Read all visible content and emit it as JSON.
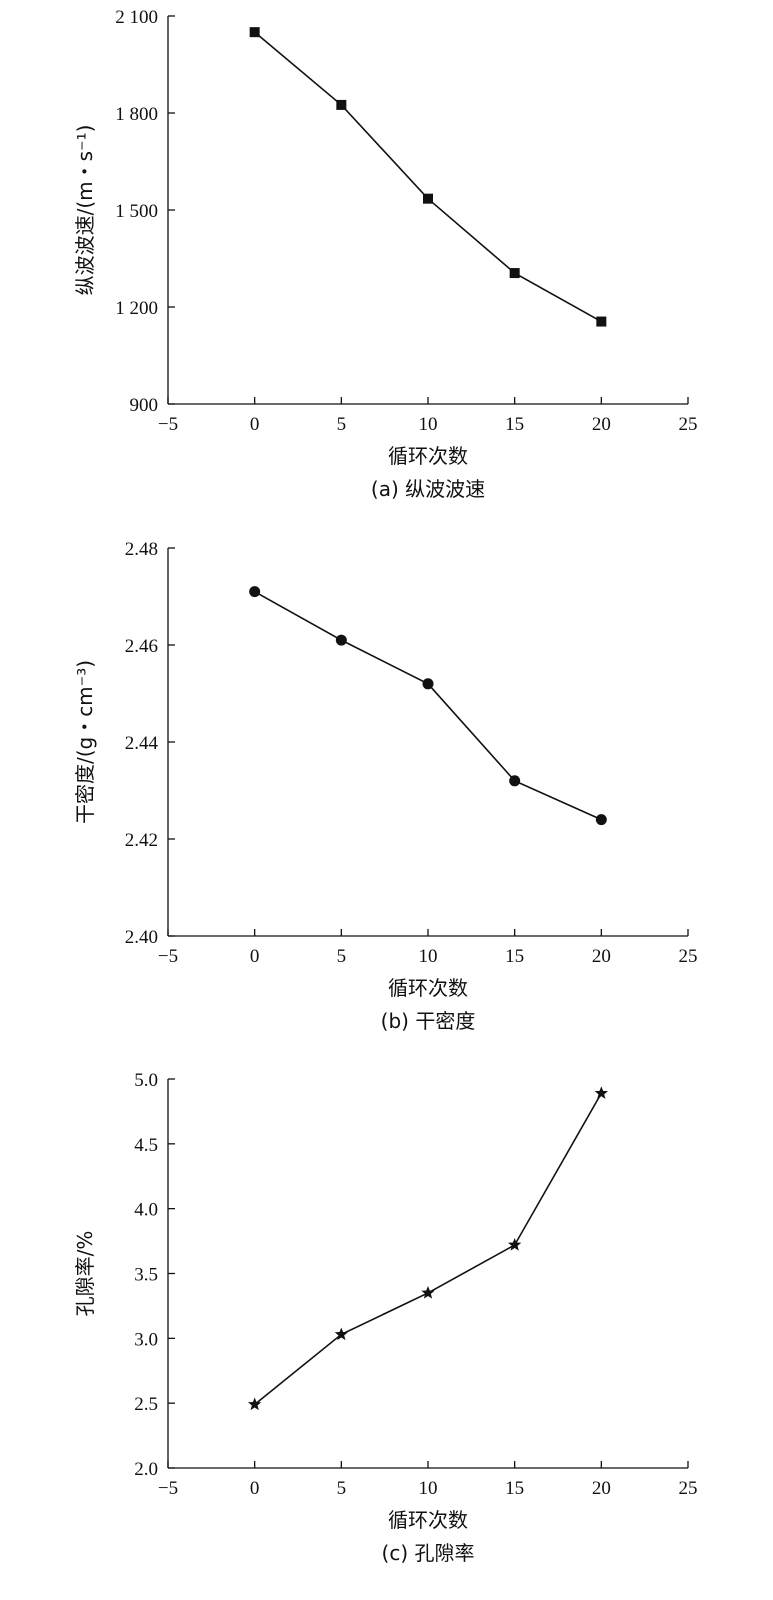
{
  "chart_data": [
    {
      "type": "line",
      "title": "",
      "caption": "(a) 纵波波速",
      "xlabel": "循环次数",
      "ylabel": "纵波波速/(m・s⁻¹)",
      "xlim": [
        -5,
        25
      ],
      "ylim": [
        900,
        2100
      ],
      "xticks": [
        -5,
        0,
        5,
        10,
        15,
        20,
        25
      ],
      "xtick_labels": [
        "−5",
        "0",
        "5",
        "10",
        "15",
        "20",
        "25"
      ],
      "yticks": [
        900,
        1200,
        1500,
        1800,
        2100
      ],
      "ytick_labels": [
        "900",
        "1 200",
        "1 500",
        "1 800",
        "2 100"
      ],
      "marker": "square",
      "grid": false,
      "series": [
        {
          "x": [
            0,
            5,
            10,
            15,
            20
          ],
          "values": [
            2050,
            1825,
            1535,
            1305,
            1155
          ]
        }
      ]
    },
    {
      "type": "line",
      "title": "",
      "caption": "(b) 干密度",
      "xlabel": "循环次数",
      "ylabel": "干密度/(g・cm⁻³)",
      "xlim": [
        -5,
        25
      ],
      "ylim": [
        2.4,
        2.48
      ],
      "xticks": [
        -5,
        0,
        5,
        10,
        15,
        20,
        25
      ],
      "xtick_labels": [
        "−5",
        "0",
        "5",
        "10",
        "15",
        "20",
        "25"
      ],
      "yticks": [
        2.4,
        2.42,
        2.44,
        2.46,
        2.48
      ],
      "ytick_labels": [
        "2.40",
        "2.42",
        "2.44",
        "2.46",
        "2.48"
      ],
      "marker": "circle",
      "grid": false,
      "series": [
        {
          "x": [
            0,
            5,
            10,
            15,
            20
          ],
          "values": [
            2.471,
            2.461,
            2.452,
            2.432,
            2.424
          ]
        }
      ]
    },
    {
      "type": "line",
      "title": "",
      "caption": "(c) 孔隙率",
      "xlabel": "循环次数",
      "ylabel": "孔隙率/%",
      "xlim": [
        -5,
        25
      ],
      "ylim": [
        2.0,
        5.0
      ],
      "xticks": [
        -5,
        0,
        5,
        10,
        15,
        20,
        25
      ],
      "xtick_labels": [
        "−5",
        "0",
        "5",
        "10",
        "15",
        "20",
        "25"
      ],
      "yticks": [
        2.0,
        2.5,
        3.0,
        3.5,
        4.0,
        4.5,
        5.0
      ],
      "ytick_labels": [
        "2.0",
        "2.5",
        "3.0",
        "3.5",
        "4.0",
        "4.5",
        "5.0"
      ],
      "marker": "star",
      "grid": false,
      "series": [
        {
          "x": [
            0,
            5,
            10,
            15,
            20
          ],
          "values": [
            2.49,
            3.03,
            3.35,
            3.72,
            4.89
          ]
        }
      ]
    }
  ]
}
